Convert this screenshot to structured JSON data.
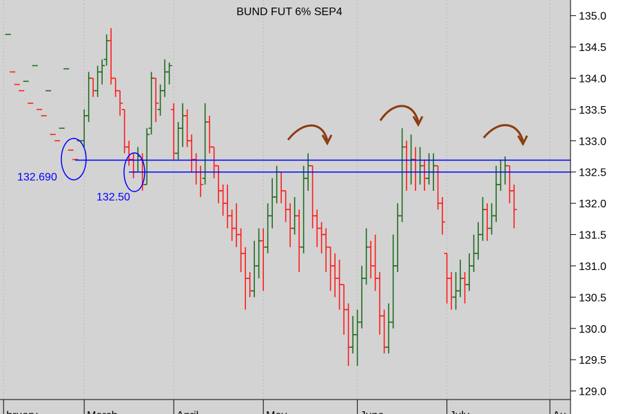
{
  "chart_data": {
    "type": "ohlc",
    "title": "BUND FUT 6% SEP4",
    "up_color": "#1e6b1e",
    "down_color": "#ff1a1a",
    "line_color": "#0000ff",
    "open": [
      134.7,
      134.1,
      133.9,
      133.8,
      133.95,
      133.6,
      134.2,
      133.5,
      133.4,
      133.8,
      133.1,
      133.0,
      133.2,
      134.15,
      132.85,
      132.7,
      133.0,
      133.0,
      133.4,
      134.0,
      133.8,
      134.1,
      134.3,
      134.6,
      134.0,
      133.8,
      133.5,
      132.9,
      132.7,
      132.5,
      132.7,
      132.3,
      133.2,
      134.0,
      133.5,
      133.8,
      134.1,
      133.5,
      132.8,
      133.2,
      133.4,
      133.0,
      132.7,
      132.5,
      132.4,
      133.3,
      132.9,
      132.6,
      132.2,
      132.0,
      131.8,
      131.6,
      131.5,
      131.2,
      130.8,
      130.6,
      131.0,
      131.4,
      131.3,
      131.8,
      132.1,
      132.5,
      132.2,
      131.9,
      131.6,
      131.8,
      131.3,
      132.4,
      132.6,
      131.8,
      131.6,
      131.5,
      131.3,
      131.0,
      130.8,
      130.7,
      130.3,
      129.7,
      129.9,
      130.1,
      130.8,
      131.3,
      131.0,
      130.8,
      130.2,
      129.7,
      130.1,
      131.0,
      131.8,
      132.9,
      132.5,
      132.7,
      132.5,
      132.6,
      132.4,
      132.5,
      132.6,
      132.0,
      131.2,
      130.8,
      130.5,
      130.6,
      130.8,
      130.7,
      131.0,
      131.2,
      131.5,
      131.9,
      131.6,
      131.8,
      132.3,
      132.5,
      132.6,
      132.2
    ],
    "high": [
      134.7,
      134.1,
      133.9,
      133.8,
      133.95,
      133.6,
      134.2,
      133.5,
      133.4,
      133.8,
      133.1,
      133.0,
      133.2,
      134.15,
      132.85,
      132.7,
      133.0,
      133.5,
      134.1,
      134.0,
      134.2,
      134.3,
      134.7,
      134.8,
      134.0,
      133.8,
      133.5,
      133.0,
      132.8,
      132.9,
      132.8,
      133.2,
      134.1,
      134.0,
      133.9,
      134.3,
      134.25,
      133.6,
      133.3,
      133.6,
      133.5,
      133.1,
      132.8,
      132.6,
      133.6,
      133.4,
      132.9,
      132.6,
      132.3,
      132.3,
      131.9,
      132.0,
      131.6,
      131.3,
      130.9,
      131.4,
      131.6,
      131.6,
      132.0,
      132.4,
      132.6,
      132.5,
      132.2,
      132.0,
      132.1,
      131.9,
      132.6,
      132.8,
      132.6,
      131.9,
      131.7,
      131.6,
      131.3,
      131.2,
      131.1,
      130.7,
      130.4,
      130.2,
      130.3,
      131.0,
      131.6,
      131.4,
      131.5,
      130.9,
      130.3,
      130.4,
      131.5,
      132.0,
      133.2,
      133.0,
      133.1,
      132.9,
      132.9,
      132.7,
      132.8,
      132.8,
      132.6,
      132.1,
      131.2,
      130.9,
      130.9,
      131.1,
      130.9,
      131.2,
      131.5,
      131.7,
      132.1,
      132.0,
      132.0,
      132.6,
      132.7,
      132.75,
      132.6,
      132.3
    ],
    "low": [
      134.7,
      134.1,
      133.9,
      133.8,
      133.95,
      133.6,
      134.2,
      133.5,
      133.4,
      133.8,
      133.1,
      133.0,
      133.2,
      134.15,
      132.85,
      132.7,
      133.0,
      132.9,
      133.3,
      133.7,
      133.7,
      133.9,
      134.2,
      133.9,
      133.7,
      133.4,
      132.8,
      132.6,
      132.4,
      132.5,
      132.2,
      132.3,
      133.1,
      133.3,
      133.4,
      133.7,
      133.9,
      132.7,
      132.7,
      132.9,
      132.9,
      132.5,
      132.3,
      132.1,
      132.3,
      132.8,
      132.4,
      132.0,
      131.8,
      131.6,
      131.4,
      131.3,
      130.9,
      130.3,
      130.5,
      130.5,
      130.8,
      130.6,
      131.2,
      131.6,
      132.0,
      132.0,
      131.7,
      131.3,
      131.5,
      130.9,
      131.2,
      132.2,
      131.6,
      131.3,
      131.2,
      130.9,
      130.6,
      130.5,
      130.3,
      129.9,
      129.4,
      129.6,
      129.4,
      130.0,
      130.7,
      130.8,
      130.6,
      129.9,
      129.6,
      129.6,
      130.0,
      130.9,
      131.7,
      132.2,
      132.3,
      132.2,
      132.3,
      132.2,
      132.3,
      132.2,
      131.9,
      131.5,
      130.4,
      130.3,
      130.3,
      130.5,
      130.4,
      130.6,
      130.9,
      131.1,
      131.4,
      131.4,
      131.5,
      131.7,
      132.2,
      132.3,
      132.0,
      131.6
    ],
    "close": [
      134.7,
      134.1,
      133.9,
      133.8,
      133.95,
      133.6,
      134.2,
      133.5,
      133.4,
      133.8,
      133.1,
      133.0,
      133.2,
      134.15,
      132.85,
      132.7,
      133.0,
      133.4,
      134.0,
      133.8,
      134.1,
      134.2,
      134.6,
      134.0,
      133.8,
      133.6,
      132.9,
      132.7,
      132.5,
      132.75,
      132.3,
      133.1,
      134.0,
      133.6,
      133.8,
      134.1,
      134.2,
      132.8,
      133.2,
      133.4,
      133.0,
      132.7,
      132.5,
      132.3,
      133.3,
      132.9,
      132.6,
      132.2,
      132.0,
      131.8,
      131.6,
      131.5,
      131.2,
      130.8,
      130.6,
      131.0,
      131.4,
      131.3,
      131.8,
      132.1,
      132.5,
      132.2,
      131.9,
      131.6,
      131.8,
      131.3,
      132.4,
      132.6,
      131.8,
      131.6,
      131.5,
      131.3,
      131.0,
      130.8,
      130.7,
      130.3,
      129.7,
      129.9,
      130.1,
      130.8,
      131.3,
      131.0,
      130.8,
      130.2,
      129.7,
      130.1,
      131.0,
      131.8,
      132.9,
      132.5,
      132.7,
      132.5,
      132.6,
      132.4,
      132.5,
      132.6,
      132.0,
      131.7,
      130.8,
      130.5,
      130.6,
      130.8,
      130.7,
      131.0,
      131.2,
      131.5,
      131.9,
      131.6,
      131.8,
      132.3,
      132.5,
      132.6,
      132.2,
      131.9
    ],
    "hlines": [
      {
        "value": 132.69,
        "label": "132.690",
        "x_start": 15
      },
      {
        "value": 132.5,
        "label": "132.50",
        "x_start": 27
      }
    ],
    "xlim": [
      -1.8,
      125.6
    ],
    "xticks": [
      {
        "value": -1,
        "label": "bruary"
      },
      {
        "value": 17,
        "label": "March"
      },
      {
        "value": 37,
        "label": "April"
      },
      {
        "value": 57,
        "label": "May"
      },
      {
        "value": 78,
        "label": "June"
      },
      {
        "value": 98,
        "label": "July"
      },
      {
        "value": 121,
        "label": "Au"
      }
    ],
    "ylim": [
      128.83,
      135.25
    ],
    "yticks": [
      {
        "value": 129,
        "label": "129.0"
      },
      129.5,
      {
        "value": 130,
        "label": "130.0"
      },
      130.5,
      {
        "value": 131,
        "label": "131.0"
      },
      131.5,
      {
        "value": 132,
        "label": "132.0"
      },
      132.5,
      {
        "value": 133,
        "label": "133.0"
      },
      133.5,
      {
        "value": 134,
        "label": "134.0"
      },
      134.5,
      {
        "value": 135,
        "label": "135.0"
      }
    ],
    "grid": true
  }
}
